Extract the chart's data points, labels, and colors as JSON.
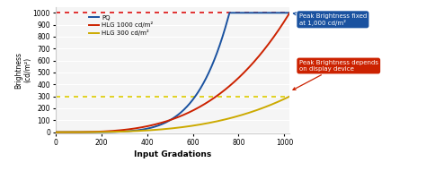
{
  "xlabel": "Input Gradations",
  "ylabel": "Brightness\n(cd/m²)",
  "xlim": [
    0,
    1023
  ],
  "ylim": [
    -10,
    1050
  ],
  "yticks": [
    0,
    100,
    200,
    300,
    400,
    500,
    600,
    700,
    800,
    900,
    1000
  ],
  "xticks": [
    0,
    200,
    400,
    600,
    800,
    1000
  ],
  "pq_color": "#1a52a0",
  "hlg1000_color": "#cc2200",
  "hlg300_color": "#ccaa00",
  "dotted_1000_color": "#dd1111",
  "dotted_300_color": "#ddcc00",
  "bg_color": "#f5f5f5",
  "annotation_blue_color": "#1a52a0",
  "annotation_red_color": "#cc2200",
  "legend_pq": "PQ",
  "legend_hlg1000": "HLG 1000 cd/m²",
  "legend_hlg300": "HLG 300 cd/m²",
  "ann1_text": "Peak Brightness fixed\nat 1,000 cd/m²",
  "ann2_text": "Peak Brightness depends\non display device",
  "pq_inflect": 760,
  "pq_power": 5.5,
  "hlg_power": 3.2
}
